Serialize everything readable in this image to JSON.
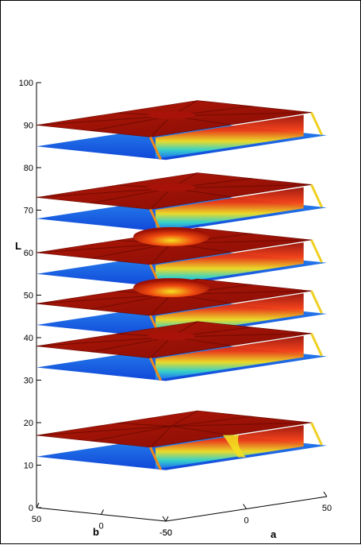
{
  "chart_data": {
    "type": "surface",
    "title": "",
    "xlabel": "a",
    "ylabel": "b",
    "zlabel": "L",
    "xlim": [
      -50,
      50
    ],
    "ylim": [
      -50,
      50
    ],
    "zlim": [
      0,
      100
    ],
    "xticks": [
      -50,
      0,
      50
    ],
    "yticks": [
      -50,
      0,
      50
    ],
    "zticks": [
      0,
      10,
      20,
      30,
      40,
      50,
      60,
      70,
      80,
      90,
      100
    ],
    "colormap": "jet",
    "colors": {
      "high": "#9a0f05",
      "mid": "#f5e020",
      "low": "#1f6bf5"
    },
    "grid": false,
    "legend": "none",
    "layers": [
      {
        "L_low": 85,
        "L_high": 90,
        "center": "ridge"
      },
      {
        "L_low": 68,
        "L_high": 73,
        "center": "ridge"
      },
      {
        "L_low": 55,
        "L_high": 60,
        "center": "bump"
      },
      {
        "L_low": 43,
        "L_high": 48,
        "center": "bump"
      },
      {
        "L_low": 33,
        "L_high": 38,
        "center": "ridge"
      },
      {
        "L_low": 12,
        "L_high": 17,
        "center": "funnel"
      }
    ]
  }
}
